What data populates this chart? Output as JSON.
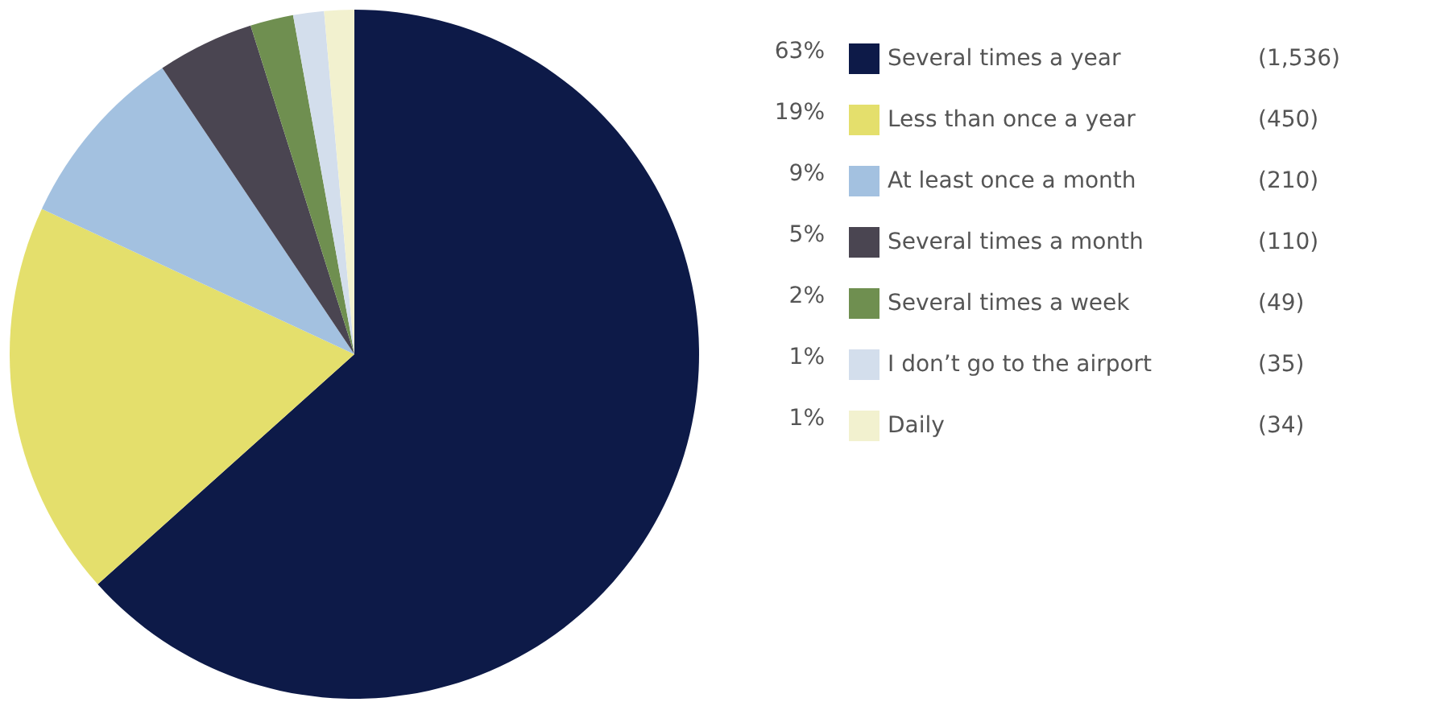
{
  "chart_data": {
    "type": "pie",
    "categories": [
      "Several times a year",
      "Less than once a year",
      "At least once a month",
      "Several times a month",
      "Several times a week",
      "I don’t go to the airport",
      "Daily"
    ],
    "values": [
      1536,
      450,
      210,
      110,
      49,
      35,
      34
    ],
    "value_labels": [
      "(1,536)",
      "(450)",
      "(210)",
      "(110)",
      "(49)",
      "(35)",
      "(34)"
    ],
    "annotations": [
      "63%",
      "19%",
      "9%",
      "5%",
      "2%",
      "1%",
      "1%"
    ],
    "colors": [
      "#0d1a48",
      "#e4df6c",
      "#a3c1e0",
      "#4a4551",
      "#6f8f50",
      "#d3deec",
      "#f2f1cf"
    ],
    "legend": "right"
  }
}
